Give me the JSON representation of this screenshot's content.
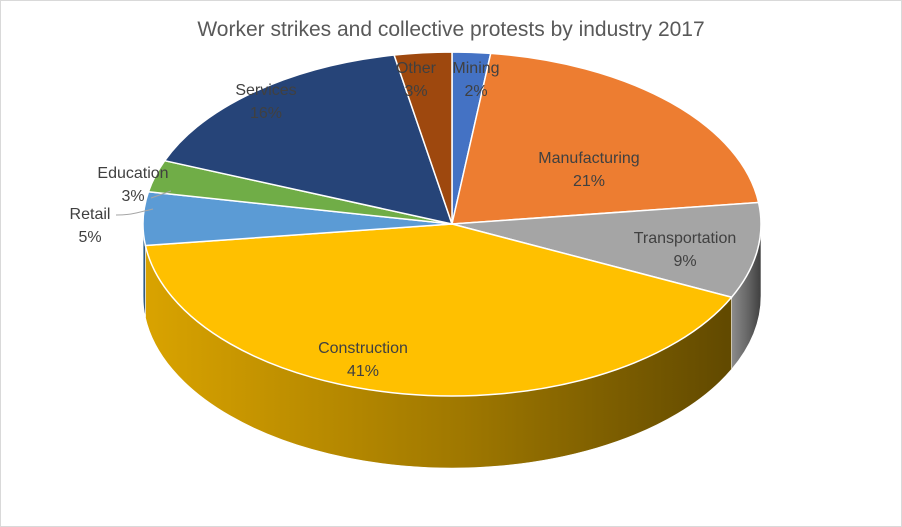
{
  "chart_data": {
    "type": "pie",
    "title": "Worker strikes and collective protests by industry 2017",
    "slices": [
      {
        "label": "Mining",
        "value": 2,
        "display": "2%",
        "color": "#4472C4",
        "label_color": "#404040"
      },
      {
        "label": "Manufacturing",
        "value": 21,
        "display": "21%",
        "color": "#ED7D31",
        "label_color": "#404040"
      },
      {
        "label": "Transportation",
        "value": 9,
        "display": "9%",
        "color": "#A5A5A5",
        "label_color": "#404040"
      },
      {
        "label": "Construction",
        "value": 41,
        "display": "41%",
        "color": "#FFC000",
        "label_color": "#404040"
      },
      {
        "label": "Retail",
        "value": 5,
        "display": "5%",
        "color": "#5B9BD5",
        "label_color": "#404040"
      },
      {
        "label": "Education",
        "value": 3,
        "display": "3%",
        "color": "#70AD47",
        "label_color": "#404040"
      },
      {
        "label": "Services",
        "value": 16,
        "display": "16%",
        "color": "#264478",
        "label_color": "#404040"
      },
      {
        "label": "Other",
        "value": 3,
        "display": "3%",
        "color": "#9E480E",
        "label_color": "#404040"
      }
    ],
    "style": "3d-pie",
    "legend": "none"
  }
}
